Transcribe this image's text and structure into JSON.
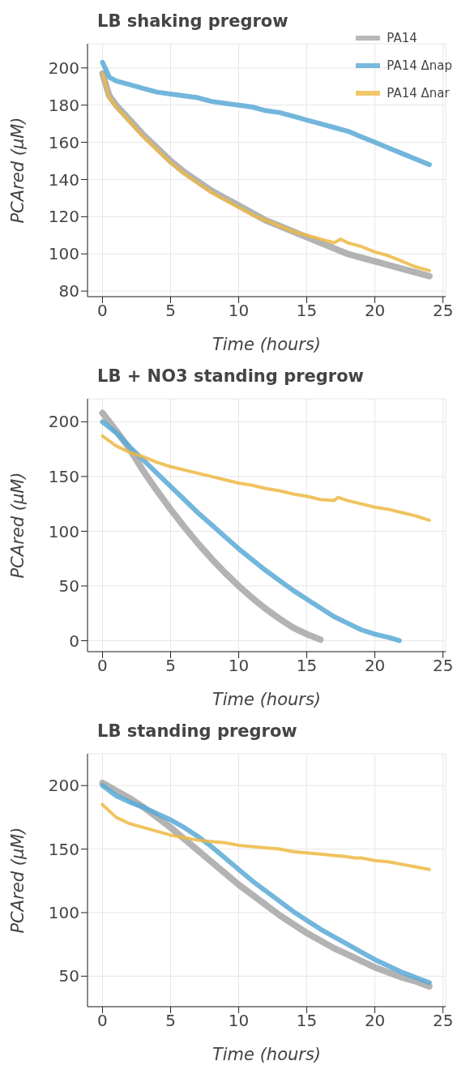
{
  "chart_data": [
    {
      "type": "line",
      "title": "LB shaking pregrow",
      "xlabel": "Time (hours)",
      "ylabel": "PCAred (μM)",
      "xlim": [
        -1.1,
        25.2
      ],
      "xticks": [
        0,
        5,
        10,
        15,
        20,
        25
      ],
      "ylim": [
        77,
        213
      ],
      "yticks": [
        80,
        100,
        120,
        140,
        160,
        180,
        200
      ],
      "grid": true,
      "legend": "top right",
      "marker": "none",
      "line_style": "solid",
      "series": [
        {
          "name": "PA14",
          "color": "#a6a6a6",
          "x": [
            0,
            0.5,
            1,
            2,
            3,
            4,
            5,
            6,
            7,
            8,
            9,
            10,
            11,
            12,
            13,
            14,
            15,
            16,
            17,
            18,
            19,
            20,
            21,
            22,
            23,
            24
          ],
          "values": [
            197,
            185,
            180,
            172,
            164,
            157,
            150,
            144,
            139,
            134,
            130,
            126,
            122,
            118,
            115,
            112,
            109,
            106,
            103,
            100,
            98,
            96,
            94,
            92,
            90,
            88
          ]
        },
        {
          "name": "PA14 Δnap",
          "color": "#5aa9d6",
          "x": [
            0,
            0.2,
            0.5,
            1,
            2,
            3,
            4,
            5,
            6,
            7,
            8,
            9,
            10,
            11,
            12,
            13,
            14,
            15,
            16,
            17,
            18,
            19,
            20,
            21,
            22,
            23,
            24
          ],
          "values": [
            203,
            200,
            195,
            193,
            191,
            189,
            187,
            186,
            185,
            184,
            182,
            181,
            180,
            179,
            177,
            176,
            174,
            172,
            170,
            168,
            166,
            163,
            160,
            157,
            154,
            151,
            148
          ]
        },
        {
          "name": "PA14 Δnar",
          "color": "#edb944",
          "x": [
            0,
            0.5,
            1,
            2,
            3,
            4,
            5,
            6,
            7,
            8,
            9,
            10,
            11,
            12,
            13,
            14,
            15,
            16,
            17,
            17.5,
            18,
            19,
            20,
            21,
            22,
            23,
            24
          ],
          "values": [
            197,
            184,
            179,
            171,
            163,
            156,
            149,
            143,
            138,
            133,
            129,
            125,
            121,
            118,
            115,
            112,
            110,
            108,
            106,
            108,
            106,
            104,
            101,
            99,
            96,
            93,
            91
          ]
        }
      ]
    },
    {
      "type": "line",
      "title": "LB + NO3 standing pregrow",
      "xlabel": "Time (hours)",
      "ylabel": "PCAred (μM)",
      "xlim": [
        -1.1,
        25.2
      ],
      "xticks": [
        0,
        5,
        10,
        15,
        20,
        25
      ],
      "ylim": [
        -10,
        221
      ],
      "yticks": [
        0,
        50,
        100,
        150,
        200
      ],
      "grid": true,
      "marker": "none",
      "line_style": "solid",
      "series": [
        {
          "color": "#a6a6a6",
          "x": [
            0,
            1,
            2,
            3,
            4,
            5,
            6,
            7,
            8,
            9,
            10,
            11,
            12,
            13,
            14,
            15,
            16
          ],
          "values": [
            208,
            192,
            175,
            155,
            137,
            120,
            104,
            89,
            75,
            62,
            50,
            39,
            29,
            20,
            12,
            6,
            1
          ]
        },
        {
          "color": "#5aa9d6",
          "x": [
            0,
            1,
            2,
            3,
            4,
            5,
            6,
            7,
            8,
            9,
            10,
            11,
            12,
            13,
            14,
            15,
            16,
            17,
            18,
            19,
            20,
            21,
            21.8
          ],
          "values": [
            200,
            190,
            177,
            165,
            153,
            141,
            129,
            117,
            106,
            95,
            84,
            74,
            64,
            55,
            46,
            38,
            30,
            22,
            16,
            10,
            6,
            3,
            0
          ]
        },
        {
          "color": "#edb944",
          "x": [
            0,
            1,
            2,
            3,
            4,
            5,
            6,
            7,
            8,
            9,
            10,
            11,
            12,
            13,
            14,
            15,
            16,
            17,
            17.3,
            18,
            19,
            20,
            21,
            22,
            23,
            24
          ],
          "values": [
            187,
            178,
            172,
            168,
            163,
            159,
            156,
            153,
            150,
            147,
            144,
            142,
            139,
            137,
            134,
            132,
            129,
            128,
            131,
            128,
            125,
            122,
            120,
            117,
            114,
            110
          ]
        }
      ]
    },
    {
      "type": "line",
      "title": "LB standing pregrow",
      "xlabel": "Time (hours)",
      "ylabel": "PCAred (μM)",
      "xlim": [
        -1.1,
        25.2
      ],
      "xticks": [
        0,
        5,
        10,
        15,
        20,
        25
      ],
      "ylim": [
        26,
        225
      ],
      "yticks": [
        50,
        100,
        150,
        200
      ],
      "grid": true,
      "marker": "none",
      "line_style": "solid",
      "series": [
        {
          "color": "#a6a6a6",
          "x": [
            0,
            1,
            2,
            3,
            4,
            5,
            6,
            7,
            8,
            9,
            10,
            11,
            12,
            13,
            14,
            15,
            16,
            17,
            18,
            19,
            20,
            21,
            22,
            23,
            24
          ],
          "values": [
            202,
            196,
            190,
            183,
            175,
            167,
            158,
            149,
            140,
            131,
            122,
            114,
            106,
            98,
            91,
            84,
            78,
            72,
            67,
            62,
            57,
            53,
            49,
            46,
            42
          ]
        },
        {
          "color": "#5aa9d6",
          "x": [
            0,
            1,
            2,
            3,
            4,
            5,
            6,
            7,
            8,
            9,
            10,
            11,
            12,
            13,
            14,
            15,
            16,
            17,
            18,
            19,
            20,
            21,
            22,
            23,
            24
          ],
          "values": [
            200,
            192,
            187,
            183,
            178,
            173,
            167,
            160,
            152,
            143,
            134,
            125,
            117,
            109,
            101,
            94,
            87,
            81,
            75,
            69,
            63,
            58,
            53,
            49,
            45
          ]
        },
        {
          "color": "#edb944",
          "x": [
            0,
            1,
            2,
            3,
            4,
            5,
            6,
            7,
            8,
            9,
            10,
            11,
            12,
            13,
            14,
            15,
            16,
            17,
            18,
            18.5,
            19,
            20,
            21,
            22,
            23,
            24
          ],
          "values": [
            185,
            175,
            170,
            167,
            164,
            161,
            159,
            157,
            156,
            155,
            153,
            152,
            151,
            150,
            148,
            147,
            146,
            145,
            144,
            143,
            143,
            141,
            140,
            138,
            136,
            134
          ]
        }
      ]
    }
  ]
}
